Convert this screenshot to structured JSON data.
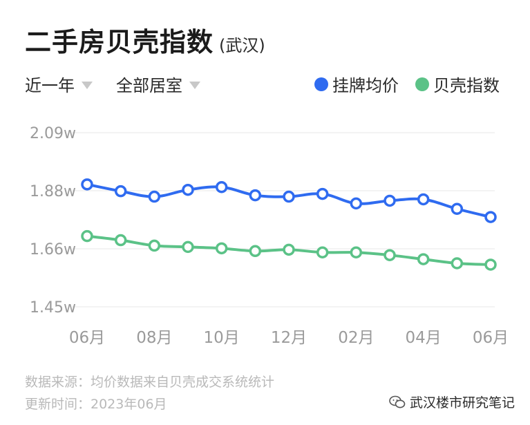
{
  "header": {
    "title": "二手房贝壳指数",
    "city": "(武汉)"
  },
  "filters": [
    {
      "label": "近一年"
    },
    {
      "label": "全部居室"
    }
  ],
  "legend": [
    {
      "label": "挂牌均价",
      "color": "#2f6bf0"
    },
    {
      "label": "贝壳指数",
      "color": "#5bc287"
    }
  ],
  "footer": {
    "source": "数据来源：均价数据来自贝壳成交系统统计",
    "updated": "更新时间：2023年06月"
  },
  "watermark": {
    "text": "武汉楼市研究笔记",
    "icon": "wechat-icon"
  },
  "chart_data": {
    "type": "line",
    "title": "二手房贝壳指数",
    "subtitle": "(武汉)",
    "xlabel": "",
    "ylabel": "",
    "x_ticks": [
      "06月",
      "08月",
      "10月",
      "12月",
      "02月",
      "04月",
      "06月"
    ],
    "categories": [
      "2022-06",
      "2022-07",
      "2022-08",
      "2022-09",
      "2022-10",
      "2022-11",
      "2022-12",
      "2023-01",
      "2023-02",
      "2023-03",
      "2023-04",
      "2023-05",
      "2023-06"
    ],
    "y_ticks": [
      "2.09w",
      "1.88w",
      "1.66w",
      "1.45w"
    ],
    "ylim": [
      1.45,
      2.09
    ],
    "grid": true,
    "legend_position": "top-right",
    "series": [
      {
        "name": "挂牌均价",
        "color": "#2f6bf0",
        "values": [
          1.9,
          1.875,
          1.855,
          1.88,
          1.89,
          1.86,
          1.855,
          1.865,
          1.83,
          1.84,
          1.845,
          1.81,
          1.78
        ]
      },
      {
        "name": "贝壳指数",
        "color": "#5bc287",
        "values": [
          1.71,
          1.695,
          1.675,
          1.67,
          1.665,
          1.655,
          1.66,
          1.65,
          1.65,
          1.64,
          1.625,
          1.61,
          1.605
        ]
      }
    ]
  }
}
